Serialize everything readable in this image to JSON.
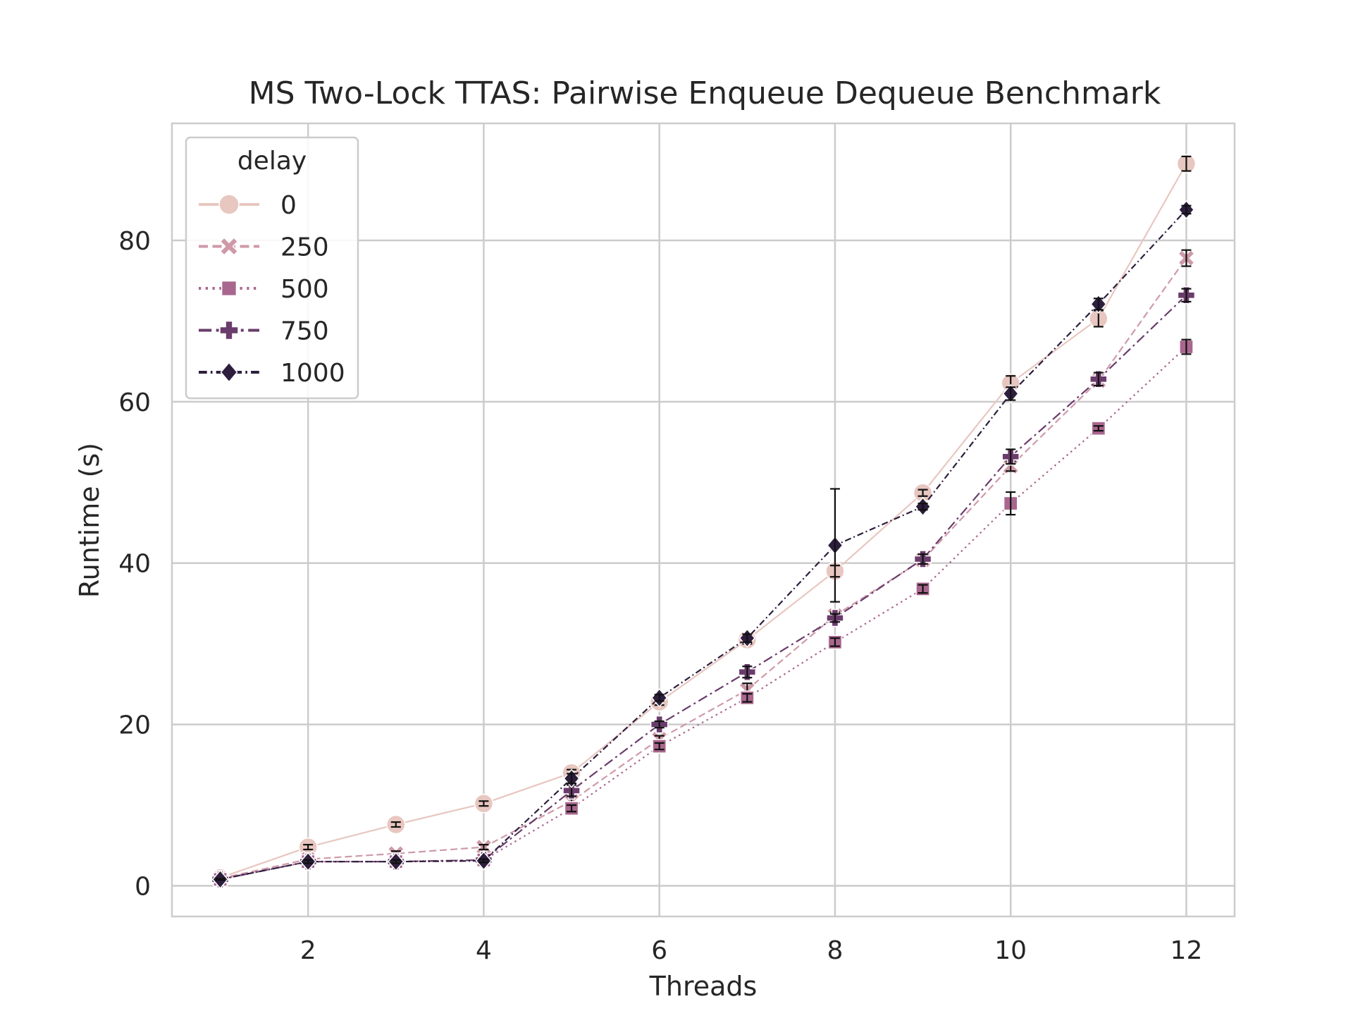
{
  "chart_data": {
    "type": "line",
    "title": "MS Two-Lock TTAS: Pairwise Enqueue Dequeue Benchmark",
    "xlabel": "Threads",
    "ylabel": "Runtime (s)",
    "xlim": [
      0.45,
      12.55
    ],
    "ylim": [
      -3.8,
      94.5
    ],
    "xticks": [
      2,
      4,
      6,
      8,
      10,
      12
    ],
    "yticks": [
      0,
      20,
      40,
      60,
      80
    ],
    "grid": true,
    "legend": {
      "title": "delay",
      "placement": "top-left"
    },
    "x": [
      1,
      2,
      3,
      4,
      5,
      6,
      7,
      8,
      9,
      10,
      11,
      12
    ],
    "series": [
      {
        "name": "0",
        "color": "#e8c7c0",
        "marker": "circle",
        "dash": "solid",
        "values": [
          1.0,
          4.8,
          7.6,
          10.2,
          14.0,
          22.8,
          30.5,
          39.0,
          48.7,
          62.3,
          70.3,
          89.5
        ],
        "err": [
          0.2,
          0.3,
          0.3,
          0.3,
          0.4,
          0.4,
          0.5,
          0.7,
          0.4,
          0.9,
          1.0,
          0.9
        ]
      },
      {
        "name": "250",
        "color": "#cf9aa8",
        "marker": "x",
        "dash": "dashed",
        "values": [
          0.9,
          3.3,
          4.0,
          4.8,
          10.5,
          18.2,
          24.3,
          33.5,
          40.4,
          52.0,
          62.6,
          77.8
        ],
        "err": [
          0.1,
          0.2,
          0.3,
          0.3,
          0.6,
          0.4,
          0.8,
          0.4,
          0.5,
          0.6,
          0.6,
          1.0
        ]
      },
      {
        "name": "500",
        "color": "#a9668e",
        "marker": "square",
        "dash": "dotted",
        "values": [
          0.8,
          3.0,
          3.0,
          3.2,
          9.6,
          17.3,
          23.3,
          30.2,
          36.8,
          47.4,
          56.7,
          66.8
        ],
        "err": [
          0.1,
          0.2,
          0.2,
          0.2,
          0.4,
          0.4,
          0.5,
          0.5,
          0.5,
          1.4,
          0.3,
          0.9
        ]
      },
      {
        "name": "750",
        "color": "#6a3c6b",
        "marker": "plus",
        "dash": "dashdot-long",
        "values": [
          0.8,
          3.0,
          3.0,
          3.2,
          11.8,
          20.0,
          26.5,
          33.2,
          40.5,
          53.2,
          62.8,
          73.2
        ],
        "err": [
          0.1,
          0.2,
          0.2,
          0.2,
          0.7,
          0.4,
          0.7,
          0.5,
          0.6,
          0.9,
          0.8,
          0.8
        ]
      },
      {
        "name": "1000",
        "color": "#2d1e3e",
        "marker": "diamond",
        "dash": "dashdot",
        "values": [
          0.8,
          3.0,
          3.0,
          3.1,
          13.3,
          23.3,
          30.7,
          42.2,
          47.0,
          61.0,
          72.1,
          83.8
        ],
        "err": [
          0.1,
          0.2,
          0.2,
          0.2,
          0.6,
          0.4,
          0.5,
          7.0,
          0.4,
          0.8,
          0.7,
          0.5
        ]
      }
    ]
  }
}
